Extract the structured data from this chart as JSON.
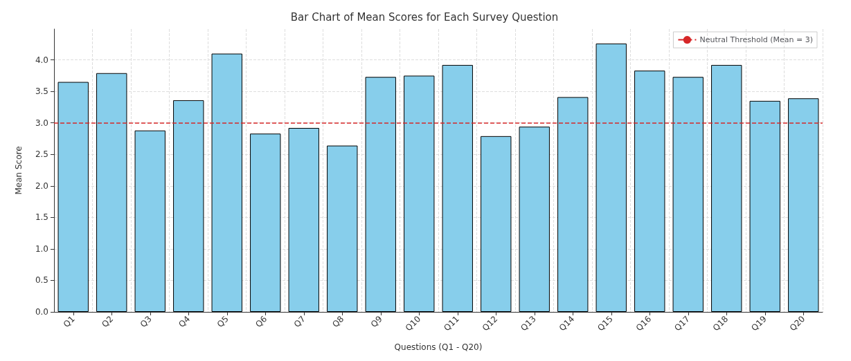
{
  "chart_data": {
    "type": "bar",
    "title": "Bar Chart of Mean Scores for Each Survey Question",
    "xlabel": "Questions (Q1 - Q20)",
    "ylabel": "Mean Score",
    "categories": [
      "Q1",
      "Q2",
      "Q3",
      "Q4",
      "Q5",
      "Q6",
      "Q7",
      "Q8",
      "Q9",
      "Q10",
      "Q11",
      "Q12",
      "Q13",
      "Q14",
      "Q15",
      "Q16",
      "Q17",
      "Q18",
      "Q19",
      "Q20"
    ],
    "values": [
      3.65,
      3.79,
      2.88,
      3.36,
      4.1,
      2.83,
      2.92,
      2.64,
      3.73,
      3.75,
      3.92,
      2.79,
      2.94,
      3.41,
      4.26,
      3.83,
      3.73,
      3.92,
      3.35,
      3.39
    ],
    "color": "#87ceeb",
    "ylim": [
      0,
      4.49
    ],
    "yticks": [
      {
        "value": 0,
        "label": "0.0"
      },
      {
        "value": 0.5,
        "label": "0.5"
      },
      {
        "value": 1,
        "label": "1.0"
      },
      {
        "value": 1.5,
        "label": "1.5"
      },
      {
        "value": 2,
        "label": "2.0"
      },
      {
        "value": 2.5,
        "label": "2.5"
      },
      {
        "value": 3,
        "label": "3.0"
      },
      {
        "value": 3.5,
        "label": "3.5"
      },
      {
        "value": 4,
        "label": "4.0"
      }
    ],
    "ref_lines": [
      {
        "axis": "y",
        "value": 3,
        "label": "Neutral Threshold (Mean = 3)",
        "color": "#d62728",
        "line_style": "dashed"
      }
    ],
    "grid": true,
    "legend": "top right"
  }
}
